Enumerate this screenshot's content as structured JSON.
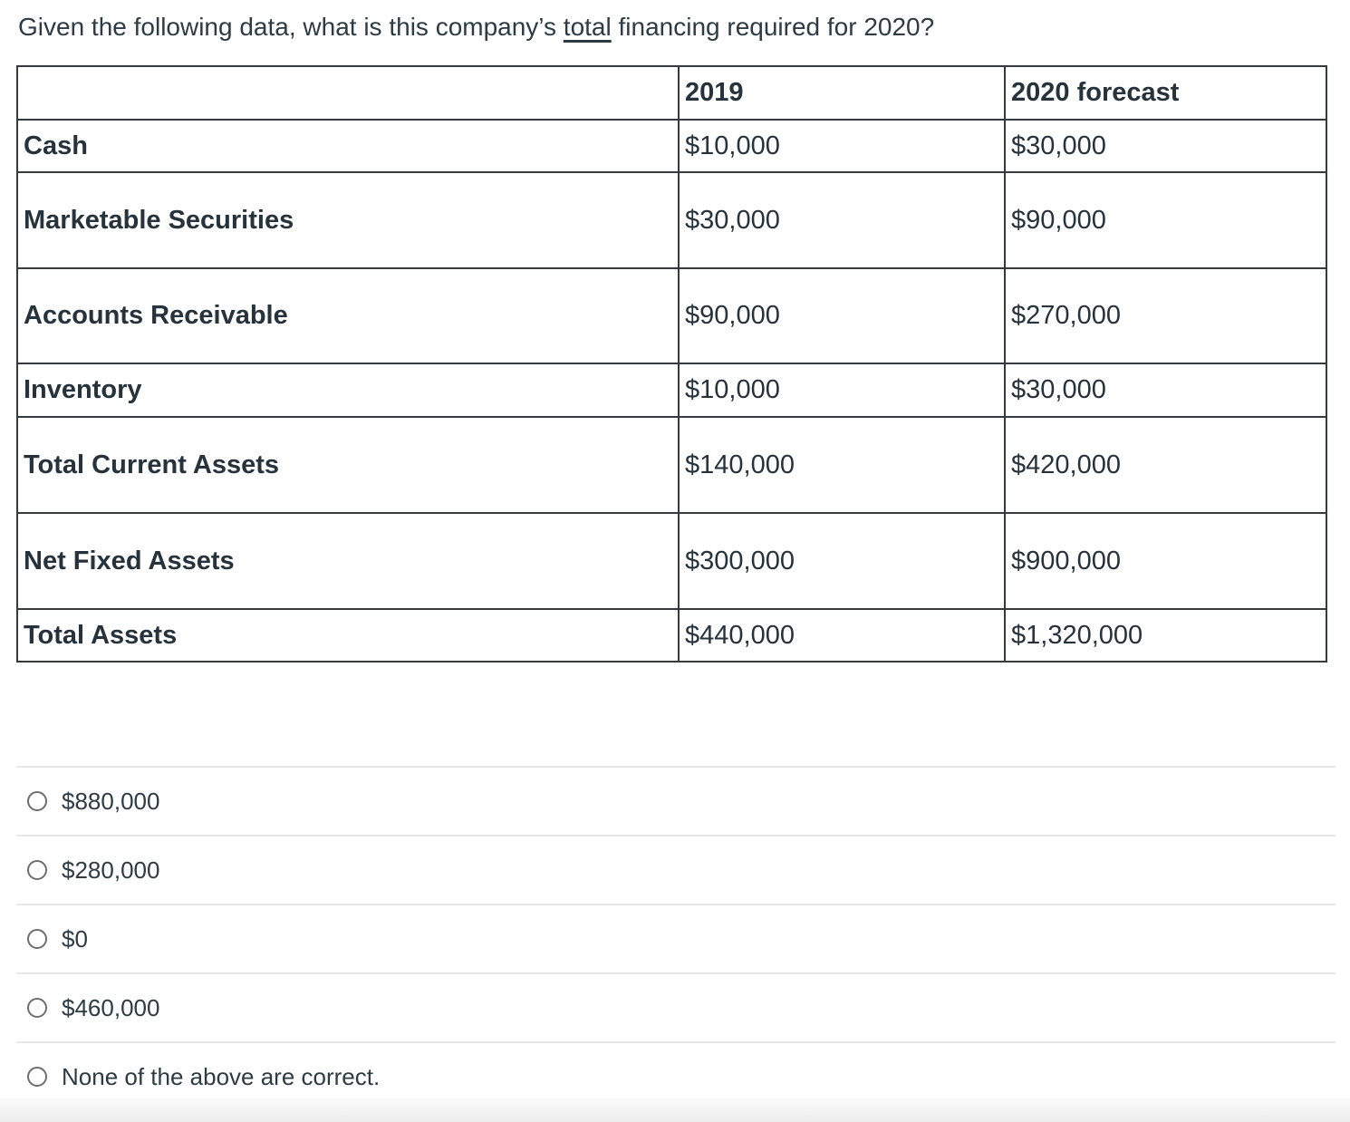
{
  "question": {
    "text_before": "Given the following data, what is this company’s ",
    "emphasized": "total",
    "text_after": " financing required for 2020?"
  },
  "table": {
    "columns": [
      "",
      "2019",
      "2020 forecast"
    ],
    "rows": [
      {
        "label": "Cash",
        "y2019": "$10,000",
        "y2020": "$30,000"
      },
      {
        "label": "Marketable Securities",
        "y2019": "$30,000",
        "y2020": "$90,000"
      },
      {
        "label": "Accounts Receivable",
        "y2019": "$90,000",
        "y2020": "$270,000"
      },
      {
        "label": "Inventory",
        "y2019": "$10,000",
        "y2020": "$30,000"
      },
      {
        "label": "Total Current Assets",
        "y2019": "$140,000",
        "y2020": "$420,000"
      },
      {
        "label": "Net Fixed Assets",
        "y2019": "$300,000",
        "y2020": "$900,000"
      },
      {
        "label": "Total Assets",
        "y2019": "$440,000",
        "y2020": "$1,320,000"
      }
    ]
  },
  "options": [
    {
      "label": "$880,000"
    },
    {
      "label": "$280,000"
    },
    {
      "label": "$0"
    },
    {
      "label": "$460,000"
    },
    {
      "label": "None of the above are correct."
    }
  ],
  "colors": {
    "text": "#2d3b45",
    "table_border": "#343a40",
    "divider": "#e8e8e8",
    "radio_border": "#6e6e6e"
  }
}
